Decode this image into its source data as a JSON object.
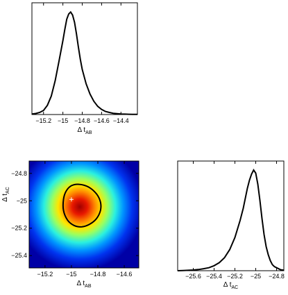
{
  "chart_data": [
    {
      "type": "line",
      "panel": "top-left",
      "xlabel": "Δ t",
      "xlabel_sub": "AB",
      "ylabel": "",
      "xlim": [
        -15.32,
        -14.23
      ],
      "xticks": [
        -15.2,
        -15,
        -14.8,
        -14.6,
        -14.4
      ],
      "xtick_labels": [
        "−15.2",
        "−15",
        "−14.8",
        "−14.6",
        "−14.4"
      ],
      "x": [
        -15.32,
        -15.28,
        -15.24,
        -15.2,
        -15.16,
        -15.12,
        -15.08,
        -15.04,
        -15.0,
        -14.98,
        -14.96,
        -14.94,
        -14.92,
        -14.9,
        -14.88,
        -14.86,
        -14.84,
        -14.82,
        -14.8,
        -14.76,
        -14.72,
        -14.68,
        -14.64,
        -14.6,
        -14.56,
        -14.52,
        -14.48,
        -14.44,
        -14.4,
        -14.36,
        -14.32,
        -14.28,
        -14.23
      ],
      "y": [
        0.005,
        0.01,
        0.02,
        0.04,
        0.09,
        0.18,
        0.33,
        0.52,
        0.72,
        0.83,
        0.93,
        0.98,
        1.0,
        0.97,
        0.9,
        0.79,
        0.66,
        0.54,
        0.44,
        0.3,
        0.2,
        0.13,
        0.08,
        0.05,
        0.03,
        0.02,
        0.012,
        0.008,
        0.005,
        0.004,
        0.003,
        0.002,
        0.002
      ]
    },
    {
      "type": "heatmap",
      "panel": "bottom-left",
      "xlabel": "Δ t",
      "xlabel_sub": "AB",
      "ylabel": "Δ t",
      "ylabel_sub": "AC",
      "xlim": [
        -15.32,
        -14.49
      ],
      "ylim": [
        -25.49,
        -24.71
      ],
      "xticks": [
        -15.2,
        -15,
        -14.8,
        -14.6
      ],
      "xtick_labels": [
        "−15.2",
        "−15",
        "−14.8",
        "−14.6"
      ],
      "yticks": [
        -24.8,
        -25,
        -25.2,
        -25.4
      ],
      "ytick_labels": [
        "−24.8",
        "−25",
        "−25.2",
        "−25.4"
      ],
      "peak": [
        -14.92,
        -25.02
      ],
      "marker": [
        -15.0,
        -24.99
      ],
      "contour": [
        [
          -15.06,
          -24.99
        ],
        [
          -15.04,
          -24.93
        ],
        [
          -15.0,
          -24.89
        ],
        [
          -14.94,
          -24.88
        ],
        [
          -14.87,
          -24.9
        ],
        [
          -14.81,
          -24.95
        ],
        [
          -14.78,
          -25.01
        ],
        [
          -14.78,
          -25.07
        ],
        [
          -14.81,
          -25.13
        ],
        [
          -14.86,
          -25.17
        ],
        [
          -14.92,
          -25.19
        ],
        [
          -14.98,
          -25.18
        ],
        [
          -15.03,
          -25.14
        ],
        [
          -15.06,
          -25.07
        ]
      ]
    },
    {
      "type": "line",
      "panel": "bottom-right",
      "xlabel": "Δ t",
      "xlabel_sub": "AC",
      "ylabel": "",
      "xlim": [
        -25.75,
        -24.73
      ],
      "xticks": [
        -25.6,
        -25.4,
        -25.2,
        -25,
        -24.8
      ],
      "xtick_labels": [
        "−25.6",
        "−25.4",
        "−25.2",
        "−25",
        "−24.8"
      ],
      "x": [
        -25.75,
        -25.7,
        -25.65,
        -25.6,
        -25.55,
        -25.5,
        -25.45,
        -25.4,
        -25.35,
        -25.3,
        -25.25,
        -25.2,
        -25.15,
        -25.12,
        -25.1,
        -25.08,
        -25.06,
        -25.04,
        -25.02,
        -25.0,
        -24.98,
        -24.96,
        -24.94,
        -24.92,
        -24.9,
        -24.88,
        -24.86,
        -24.84,
        -24.82,
        -24.8,
        -24.76,
        -24.73
      ],
      "y": [
        0.0,
        0.002,
        0.004,
        0.007,
        0.012,
        0.02,
        0.03,
        0.05,
        0.08,
        0.13,
        0.21,
        0.33,
        0.5,
        0.62,
        0.72,
        0.82,
        0.9,
        0.96,
        1.0,
        0.97,
        0.86,
        0.7,
        0.52,
        0.36,
        0.24,
        0.16,
        0.1,
        0.06,
        0.04,
        0.03,
        0.01,
        0.005
      ]
    }
  ]
}
